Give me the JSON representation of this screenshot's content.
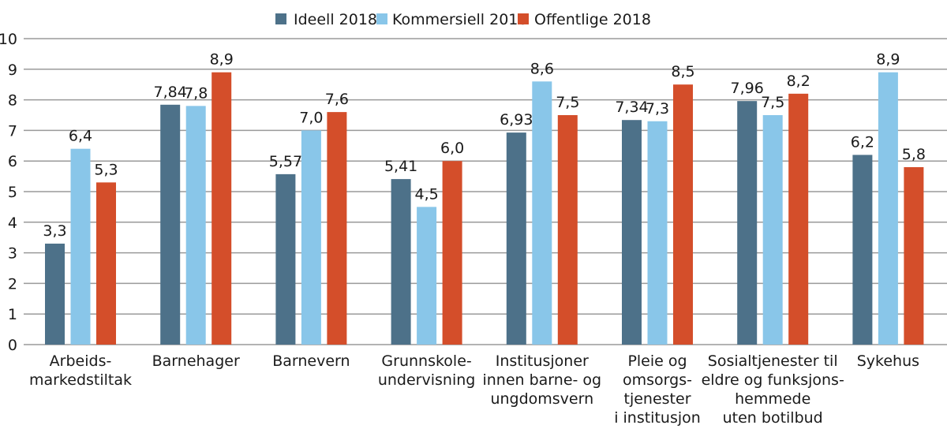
{
  "chart_data": {
    "type": "bar",
    "title": "",
    "xlabel": "",
    "ylabel": "",
    "ylim": [
      0,
      10
    ],
    "yticks": [
      "0",
      "1",
      "2",
      "3",
      "4",
      "5",
      "6",
      "7",
      "8",
      "9",
      "10"
    ],
    "grid": true,
    "legend_position": "top-center",
    "categories": [
      [
        "Arbeids-",
        "markedstiltak"
      ],
      [
        "Barnehager"
      ],
      [
        "Barnevern"
      ],
      [
        "Grunnskole-",
        "undervisning"
      ],
      [
        "Institusjoner",
        "innen barne- og",
        "ungdomsvern"
      ],
      [
        "Pleie og",
        "omsorgs-",
        "tjenester",
        "i institusjon"
      ],
      [
        "Sosialtjenester til",
        "eldre og funksjons-",
        "hemmede",
        "uten botilbud"
      ],
      [
        "Sykehus"
      ]
    ],
    "series": [
      {
        "name": "Ideell 2018",
        "color": "#4d7189",
        "values": [
          3.3,
          7.84,
          5.57,
          5.41,
          6.93,
          7.34,
          7.96,
          6.2
        ],
        "labels": [
          "3,3",
          "7,84",
          "5,57",
          "5,41",
          "6,93",
          "7,34",
          "7,96",
          "6,2"
        ]
      },
      {
        "name": "Kommersiell 2018",
        "color": "#89c6e9",
        "values": [
          6.4,
          7.8,
          7.0,
          4.5,
          8.6,
          7.3,
          7.5,
          8.9
        ],
        "labels": [
          "6,4",
          "7,8",
          "7,0",
          "4,5",
          "8,6",
          "7,3",
          "7,5",
          "8,9"
        ]
      },
      {
        "name": "Offentlige 2018",
        "color": "#d44e2a",
        "values": [
          5.3,
          8.9,
          7.6,
          6.0,
          7.5,
          8.5,
          8.2,
          5.8
        ],
        "labels": [
          "5,3",
          "8,9",
          "7,6",
          "6,0",
          "7,5",
          "8,5",
          "8,2",
          "5,8"
        ]
      }
    ]
  }
}
